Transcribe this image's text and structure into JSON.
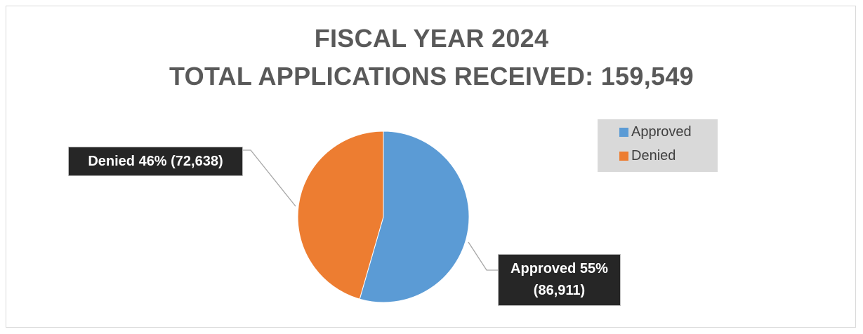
{
  "chart_data": {
    "type": "pie",
    "title": "FISCAL YEAR 2024",
    "subtitle": "TOTAL APPLICATIONS RECEIVED: 159,549",
    "categories": [
      "Approved",
      "Denied"
    ],
    "values": [
      86911,
      72638
    ],
    "colors": [
      "#5b9bd5",
      "#ed7d31"
    ],
    "data_labels": [
      {
        "line1": "Approved 55%",
        "line2": "(86,911)"
      },
      {
        "line1": "Denied 46% (72,638)"
      }
    ],
    "legend": {
      "placement": "top-right",
      "items": [
        "Approved",
        "Denied"
      ]
    }
  }
}
